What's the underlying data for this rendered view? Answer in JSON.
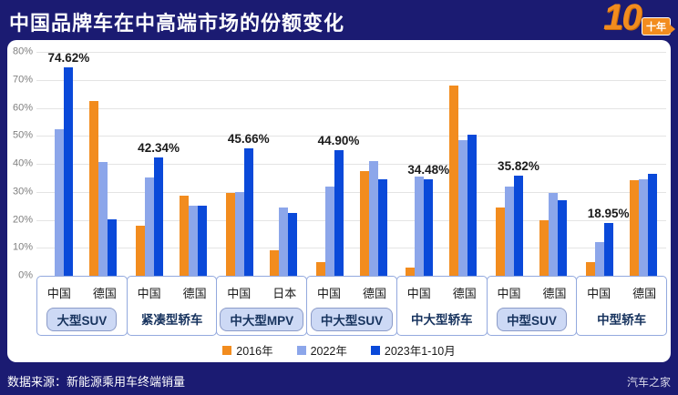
{
  "header": {
    "title": "中国品牌车在中高端市场的份额变化",
    "logo": {
      "number": "10",
      "badge": "十年"
    }
  },
  "footer": {
    "source": "数据来源：新能源乘用车终端销量",
    "brand": "汽车之家"
  },
  "colors": {
    "background_navy": "#1b1b72",
    "panel_white": "#ffffff",
    "gridline": "#e4e4e4",
    "axis_box_blue": "#93a9de",
    "category_box_fill": "#cdd9f5",
    "accent_orange": "#f28c1e"
  },
  "chart_data": {
    "type": "bar",
    "title": "中国品牌车在中高端市场的份额变化",
    "ylabel": "",
    "ylim": [
      0,
      80
    ],
    "yticks": [
      "80%",
      "70%",
      "60%",
      "50%",
      "40%",
      "30%",
      "20%",
      "10%",
      "0%"
    ],
    "grid": true,
    "legend_position": "bottom",
    "legend": [
      {
        "name": "2016年",
        "color": "#f28c1e"
      },
      {
        "name": "2022年",
        "color": "#8ca6ea"
      },
      {
        "name": "2023年1-10月",
        "color": "#0a49d9"
      }
    ],
    "groups": [
      {
        "category": "大型SUV",
        "boxed": true,
        "clusters": [
          {
            "country": "中国",
            "values": [
              0,
              52.5,
              74.62
            ],
            "label": "74.62%"
          },
          {
            "country": "德国",
            "values": [
              62.5,
              40.5,
              20.3
            ]
          }
        ]
      },
      {
        "category": "紧凑型轿车",
        "boxed": false,
        "clusters": [
          {
            "country": "中国",
            "values": [
              18,
              35,
              42.34
            ],
            "label": "42.34%"
          },
          {
            "country": "德国",
            "values": [
              28.5,
              25.2,
              25
            ]
          }
        ]
      },
      {
        "category": "中大型MPV",
        "boxed": true,
        "clusters": [
          {
            "country": "中国",
            "values": [
              29.5,
              29.8,
              45.66
            ],
            "label": "45.66%"
          },
          {
            "country": "日本",
            "values": [
              9,
              24.5,
              22.5
            ]
          }
        ]
      },
      {
        "category": "中大型SUV",
        "boxed": true,
        "clusters": [
          {
            "country": "中国",
            "values": [
              5,
              32,
              44.9
            ],
            "label": "44.90%"
          },
          {
            "country": "德国",
            "values": [
              37.5,
              41,
              34.5
            ]
          }
        ]
      },
      {
        "category": "中大型轿车",
        "boxed": false,
        "clusters": [
          {
            "country": "中国",
            "values": [
              3,
              35.5,
              34.48
            ],
            "label": "34.48%"
          },
          {
            "country": "德国",
            "values": [
              68,
              48.5,
              50.5
            ]
          }
        ]
      },
      {
        "category": "中型SUV",
        "boxed": true,
        "clusters": [
          {
            "country": "中国",
            "values": [
              24.5,
              32,
              35.82
            ],
            "label": "35.82%"
          },
          {
            "country": "德国",
            "values": [
              20,
              29.5,
              27
            ]
          }
        ]
      },
      {
        "category": "中型轿车",
        "boxed": false,
        "clusters": [
          {
            "country": "中国",
            "values": [
              5,
              12,
              18.95
            ],
            "label": "18.95%"
          },
          {
            "country": "德国",
            "values": [
              34,
              34.5,
              36.5
            ]
          }
        ]
      }
    ]
  }
}
